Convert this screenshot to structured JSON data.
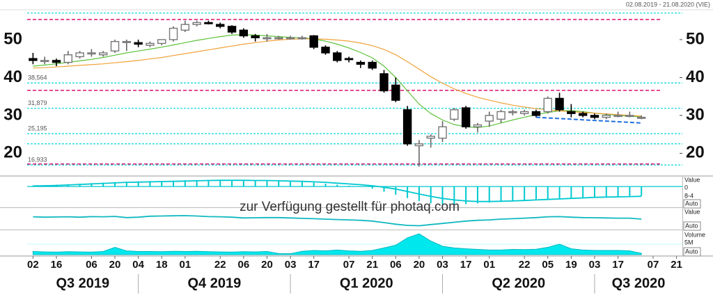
{
  "chart_data": {
    "type": "candlestick",
    "date_range": "02.08.2019 - 21.08.2020 (VIE)",
    "watermark": "zur Verfügung gestellt für photaq.com",
    "xlim": [
      -0.5,
      55.5
    ],
    "ylim": [
      14.2,
      57.7
    ],
    "yticks": [
      20,
      30,
      40,
      50
    ],
    "xticks": [
      {
        "value": 0,
        "label": "02"
      },
      {
        "value": 2,
        "label": "16"
      },
      {
        "value": 5,
        "label": "06"
      },
      {
        "value": 7,
        "label": "20"
      },
      {
        "value": 9,
        "label": "04"
      },
      {
        "value": 11,
        "label": "18"
      },
      {
        "value": 13,
        "label": "01"
      },
      {
        "value": 16,
        "label": "22"
      },
      {
        "value": 18,
        "label": "06"
      },
      {
        "value": 20,
        "label": "20"
      },
      {
        "value": 22,
        "label": "03"
      },
      {
        "value": 24,
        "label": "17"
      },
      {
        "value": 27,
        "label": "07"
      },
      {
        "value": 29,
        "label": "21"
      },
      {
        "value": 31,
        "label": "06"
      },
      {
        "value": 33,
        "label": "20"
      },
      {
        "value": 35,
        "label": "03"
      },
      {
        "value": 37,
        "label": "17"
      },
      {
        "value": 39,
        "label": "01"
      },
      {
        "value": 42,
        "label": "22"
      },
      {
        "value": 44,
        "label": "05"
      },
      {
        "value": 46,
        "label": "19"
      },
      {
        "value": 48,
        "label": "03"
      },
      {
        "value": 50,
        "label": "17"
      },
      {
        "value": 53,
        "label": "07"
      },
      {
        "value": 55,
        "label": "21"
      }
    ],
    "quarters": [
      {
        "value": 4.25,
        "label": "Q3 2019"
      },
      {
        "value": 15.5,
        "label": "Q4 2019"
      },
      {
        "value": 28.5,
        "label": "Q1 2020"
      },
      {
        "value": 41.5,
        "label": "Q2 2020"
      },
      {
        "value": 51.75,
        "label": "Q3 2020"
      }
    ],
    "quarter_breaks": [
      9,
      22,
      35,
      48
    ],
    "x": [
      0,
      1,
      2,
      3,
      4,
      5,
      6,
      7,
      8,
      9,
      10,
      11,
      12,
      13,
      14,
      15,
      16,
      17,
      18,
      19,
      20,
      21,
      22,
      23,
      24,
      25,
      26,
      27,
      28,
      29,
      30,
      31,
      32,
      33,
      34,
      35,
      36,
      37,
      38,
      39,
      40,
      41,
      42,
      43,
      44,
      45,
      46,
      47,
      48,
      49,
      50,
      51,
      52
    ],
    "open": [
      45,
      44.5,
      44.5,
      44,
      45.5,
      46.5,
      46,
      47,
      49.5,
      49.2,
      48.5,
      49,
      50,
      52.5,
      54,
      54.5,
      54,
      53.5,
      52.5,
      51,
      50.5,
      50.5,
      50.5,
      50.5,
      51,
      48,
      46.5,
      45,
      44,
      44,
      41,
      38,
      31.5,
      22,
      24,
      24,
      29,
      32,
      27,
      28.5,
      29,
      31,
      30.5,
      31,
      31,
      34.5,
      31,
      30.5,
      30,
      29.5,
      30,
      30,
      29.5
    ],
    "high": [
      46.5,
      45.5,
      45,
      47,
      47,
      47.5,
      47,
      50,
      50,
      50,
      49.5,
      50,
      53.5,
      55,
      55,
      55,
      54.5,
      53.8,
      53,
      51.5,
      51.5,
      51,
      51,
      51,
      51.2,
      48.5,
      47,
      45.5,
      44.5,
      44.5,
      42,
      40,
      32.5,
      23.5,
      25,
      28.5,
      32,
      32.5,
      28,
      31,
      31.5,
      31.5,
      31.5,
      31.5,
      35,
      36,
      33,
      31,
      30.5,
      30.5,
      31,
      31,
      30
    ],
    "low": [
      43.5,
      43.5,
      43,
      43.5,
      45,
      45.5,
      45.5,
      46.5,
      47,
      48,
      48,
      48.5,
      49.5,
      52,
      53.5,
      54,
      53,
      51.5,
      50.5,
      49.5,
      49.5,
      50,
      50,
      50,
      47.5,
      46,
      44,
      44,
      42.5,
      42,
      36,
      33.5,
      22,
      16.5,
      21.5,
      23,
      28.5,
      26.5,
      25.5,
      27,
      28,
      30,
      30,
      29.5,
      30.5,
      31,
      29.5,
      29.5,
      29,
      29,
      29.5,
      29.5,
      29
    ],
    "close": [
      44.5,
      44.5,
      44,
      46,
      46.5,
      46.5,
      46.5,
      49.5,
      49.5,
      48.8,
      49,
      50,
      53,
      54,
      54.5,
      54.2,
      53.5,
      52,
      51,
      50.5,
      50.5,
      50.5,
      50.5,
      50.5,
      48,
      46.5,
      44.5,
      44.8,
      43.5,
      42.5,
      36.5,
      34,
      22.5,
      22.5,
      24.5,
      27,
      31.5,
      27,
      27.5,
      30,
      31,
      31,
      31,
      30,
      34.5,
      31.5,
      30.5,
      30,
      29.5,
      30,
      30,
      30,
      29.5
    ],
    "up_color": "#ffffff",
    "down_color": "#000000",
    "series": [
      {
        "color": "#5cc23a",
        "values": [
          43,
          43.3,
          43.6,
          44,
          44.4,
          44.8,
          45.3,
          45.9,
          46.5,
          47,
          47.5,
          48,
          48.6,
          49.2,
          49.8,
          50.3,
          50.8,
          51.2,
          51.3,
          51.2,
          51,
          50.8,
          50.6,
          50.5,
          50.2,
          49.6,
          48.8,
          47.8,
          46.6,
          45.2,
          43,
          40,
          36.5,
          33,
          30.5,
          28.8,
          27.6,
          27,
          26.8,
          27.2,
          28,
          28.8,
          29.5,
          30.2,
          30.8,
          31.2,
          31.3,
          31,
          30.6,
          30.3,
          30,
          29.8,
          29.6
        ]
      },
      {
        "color": "#f0a23a",
        "values": [
          42.5,
          42.6,
          42.8,
          43,
          43.2,
          43.4,
          43.6,
          43.9,
          44.2,
          44.5,
          44.9,
          45.3,
          45.8,
          46.3,
          46.8,
          47.3,
          47.8,
          48.3,
          48.8,
          49.2,
          49.6,
          49.9,
          50.1,
          50.2,
          50.2,
          50.1,
          49.9,
          49.6,
          49.1,
          48.4,
          47.4,
          46,
          44.2,
          42.2,
          40.2,
          38.5,
          37,
          35.8,
          34.8,
          34,
          33.3,
          32.7,
          32.2,
          31.8,
          31.5,
          31.2,
          31,
          30.8,
          30.6,
          30.4,
          30.2,
          30,
          29.8
        ]
      }
    ],
    "levels": [
      {
        "value": 38.564,
        "label": "38,564"
      },
      {
        "value": 31.879,
        "label": "31,879"
      },
      {
        "value": 25.195,
        "label": "25,195"
      },
      {
        "value": 16.933,
        "label": "16,933"
      }
    ],
    "cyan_lines": [
      57,
      22.5
    ],
    "level_color": "#00d4dc",
    "magenta_lines": [
      55.3,
      36.6,
      17.2
    ],
    "magenta_color": "#e0207a",
    "trend": {
      "x": [
        43,
        52
      ],
      "values": [
        29.5,
        28
      ],
      "color": "#1e6fe0"
    },
    "panels": [
      {
        "label": "Value",
        "note": "8-4",
        "button": "Auto",
        "ylim": [
          -7.5,
          3.25
        ],
        "yticks": [
          0
        ],
        "color": "#00c8d0",
        "bars": [
          0.3,
          0.5,
          0.7,
          0.9,
          1.1,
          1.3,
          1.5,
          1.7,
          1.9,
          2.0,
          2.1,
          2.2,
          2.3,
          2.4,
          2.5,
          2.6,
          2.6,
          2.5,
          2.4,
          2.3,
          2.2,
          2.1,
          2.0,
          1.8,
          1.5,
          1.1,
          0.7,
          0.3,
          0.0,
          -0.8,
          -2.0,
          -3.2,
          -4.5,
          -5.6,
          -6.5,
          -7.0,
          -7.0,
          -6.8,
          -6.5,
          -6.2,
          -5.9,
          -5.6,
          -5.3,
          -5.0,
          -4.8,
          -4.6,
          -4.4,
          -4.2,
          -4.0,
          -3.9,
          -3.8,
          -3.7,
          -3.6
        ],
        "line": [
          0.2,
          0.3,
          0.4,
          0.6,
          0.8,
          1.0,
          1.2,
          1.4,
          1.6,
          1.7,
          1.8,
          1.9,
          2.0,
          2.1,
          2.2,
          2.3,
          2.4,
          2.4,
          2.4,
          2.3,
          2.3,
          2.2,
          2.1,
          2.0,
          1.8,
          1.6,
          1.3,
          1.0,
          0.7,
          0.3,
          -0.3,
          -1.0,
          -1.9,
          -2.9,
          -3.8,
          -4.6,
          -5.2,
          -5.6,
          -5.8,
          -5.8,
          -5.7,
          -5.6,
          -5.4,
          -5.2,
          -5.0,
          -4.8,
          -4.6,
          -4.4,
          -4.2,
          -4.1,
          -4.0,
          -3.9,
          -3.8
        ]
      },
      {
        "label": "Value",
        "button": "Auto",
        "ylim": [
          0,
          100
        ],
        "color": "#10b8c0",
        "line": [
          62,
          60,
          61,
          62,
          60,
          63,
          62,
          64,
          58,
          60,
          65,
          66,
          67,
          68,
          66,
          63,
          62,
          60,
          56,
          57,
          58,
          58,
          56,
          54,
          52,
          50,
          48,
          46,
          44,
          40,
          32,
          24,
          18,
          16,
          22,
          28,
          34,
          40,
          44,
          46,
          50,
          52,
          55,
          58,
          62,
          63,
          60,
          58,
          57,
          56,
          55,
          55,
          50
        ]
      },
      {
        "label": "Volume",
        "button": "Auto",
        "ylim": [
          0,
          11000000
        ],
        "yticks": [
          {
            "value": 5000000,
            "label": "5M"
          }
        ],
        "color": "#00e8ee",
        "area": [
          1500000,
          1300000,
          1200000,
          1400000,
          1300000,
          1200000,
          1500000,
          3500000,
          1800000,
          1500000,
          1500000,
          1400000,
          1600000,
          1500000,
          1600000,
          1400000,
          1300000,
          1200000,
          1400000,
          1300000,
          1500000,
          500000,
          400000,
          1600000,
          2000000,
          1800000,
          2200000,
          1800000,
          1600000,
          2000000,
          3200000,
          4500000,
          8000000,
          10000000,
          6500000,
          4000000,
          3200000,
          2800000,
          2500000,
          2200000,
          2200000,
          2500000,
          2400000,
          2600000,
          3500000,
          5000000,
          2800000,
          2200000,
          2000000,
          2000000,
          2000000,
          1800000,
          600000
        ]
      }
    ]
  }
}
